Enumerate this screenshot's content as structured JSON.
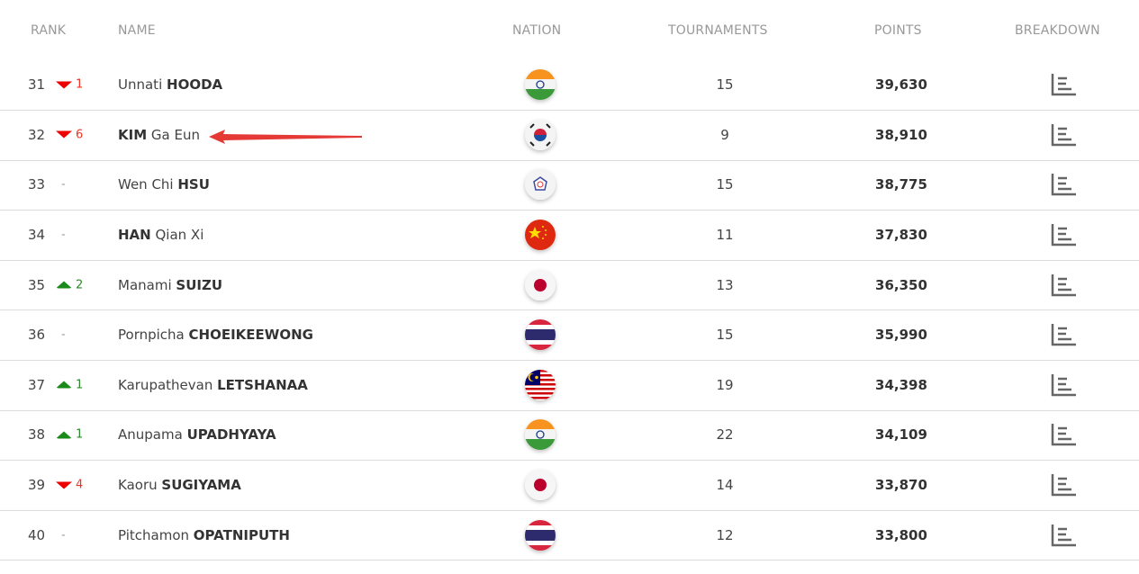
{
  "headers": {
    "rank": "RANK",
    "name": "NAME",
    "nation": "NATION",
    "tournaments": "TOURNAMENTS",
    "points": "POINTS",
    "breakdown": "BREAKDOWN"
  },
  "colors": {
    "down": "#e00000",
    "up": "#1a8a1a",
    "annotation_arrow": "#e53935"
  },
  "rows": [
    {
      "rank": "31",
      "change_dir": "down",
      "change": "1",
      "first": "Unnati ",
      "last": "HOODA",
      "surname_first": false,
      "nation": "India",
      "tournaments": "15",
      "points": "39,630"
    },
    {
      "rank": "32",
      "change_dir": "down",
      "change": "6",
      "first": " Ga Eun",
      "last": "KIM",
      "surname_first": true,
      "nation": "Korea",
      "tournaments": "9",
      "points": "38,910"
    },
    {
      "rank": "33",
      "change_dir": "same",
      "change": "-",
      "first": "Wen Chi ",
      "last": "HSU",
      "surname_first": false,
      "nation": "Chinese Taipei",
      "tournaments": "15",
      "points": "38,775"
    },
    {
      "rank": "34",
      "change_dir": "same",
      "change": "-",
      "first": " Qian Xi",
      "last": "HAN",
      "surname_first": true,
      "nation": "China",
      "tournaments": "11",
      "points": "37,830"
    },
    {
      "rank": "35",
      "change_dir": "up",
      "change": "2",
      "first": "Manami ",
      "last": "SUIZU",
      "surname_first": false,
      "nation": "Japan",
      "tournaments": "13",
      "points": "36,350"
    },
    {
      "rank": "36",
      "change_dir": "same",
      "change": "-",
      "first": "Pornpicha ",
      "last": "CHOEIKEEWONG",
      "surname_first": false,
      "nation": "Thailand",
      "tournaments": "15",
      "points": "35,990"
    },
    {
      "rank": "37",
      "change_dir": "up",
      "change": "1",
      "first": "Karupathevan ",
      "last": "LETSHANAA",
      "surname_first": false,
      "nation": "Malaysia",
      "tournaments": "19",
      "points": "34,398"
    },
    {
      "rank": "38",
      "change_dir": "up",
      "change": "1",
      "first": "Anupama ",
      "last": "UPADHYAYA",
      "surname_first": false,
      "nation": "India",
      "tournaments": "22",
      "points": "34,109"
    },
    {
      "rank": "39",
      "change_dir": "down",
      "change": "4",
      "first": "Kaoru ",
      "last": "SUGIYAMA",
      "surname_first": false,
      "nation": "Japan",
      "tournaments": "14",
      "points": "33,870"
    },
    {
      "rank": "40",
      "change_dir": "same",
      "change": "-",
      "first": "Pitchamon ",
      "last": "OPATNIPUTH",
      "surname_first": false,
      "nation": "Thailand",
      "tournaments": "12",
      "points": "33,800"
    }
  ]
}
